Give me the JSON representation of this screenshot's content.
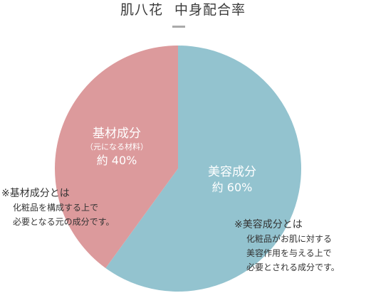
{
  "title": {
    "left": "肌八花",
    "right": "中身配合率"
  },
  "chart_data": {
    "type": "pie",
    "title": "肌八花　中身配合率",
    "slices": [
      {
        "name": "美容成分",
        "value": 60,
        "percent_label": "約 60%",
        "color": "#93c3cf"
      },
      {
        "name": "基材成分",
        "subtitle": "（元になる材料）",
        "value": 40,
        "percent_label": "約 40%",
        "color": "#dc9a9c"
      }
    ],
    "start_angle_deg": 0,
    "direction": "clockwise"
  },
  "notes": {
    "base": {
      "title": "※基材成分とは",
      "lines": [
        "化粧品を構成する上で",
        "必要となる元の成分です。"
      ]
    },
    "beauty": {
      "title": "※美容成分とは",
      "lines": [
        "化粧品がお肌に対する",
        "美容作用を与える上で",
        "必要とされる成分です。"
      ]
    }
  }
}
